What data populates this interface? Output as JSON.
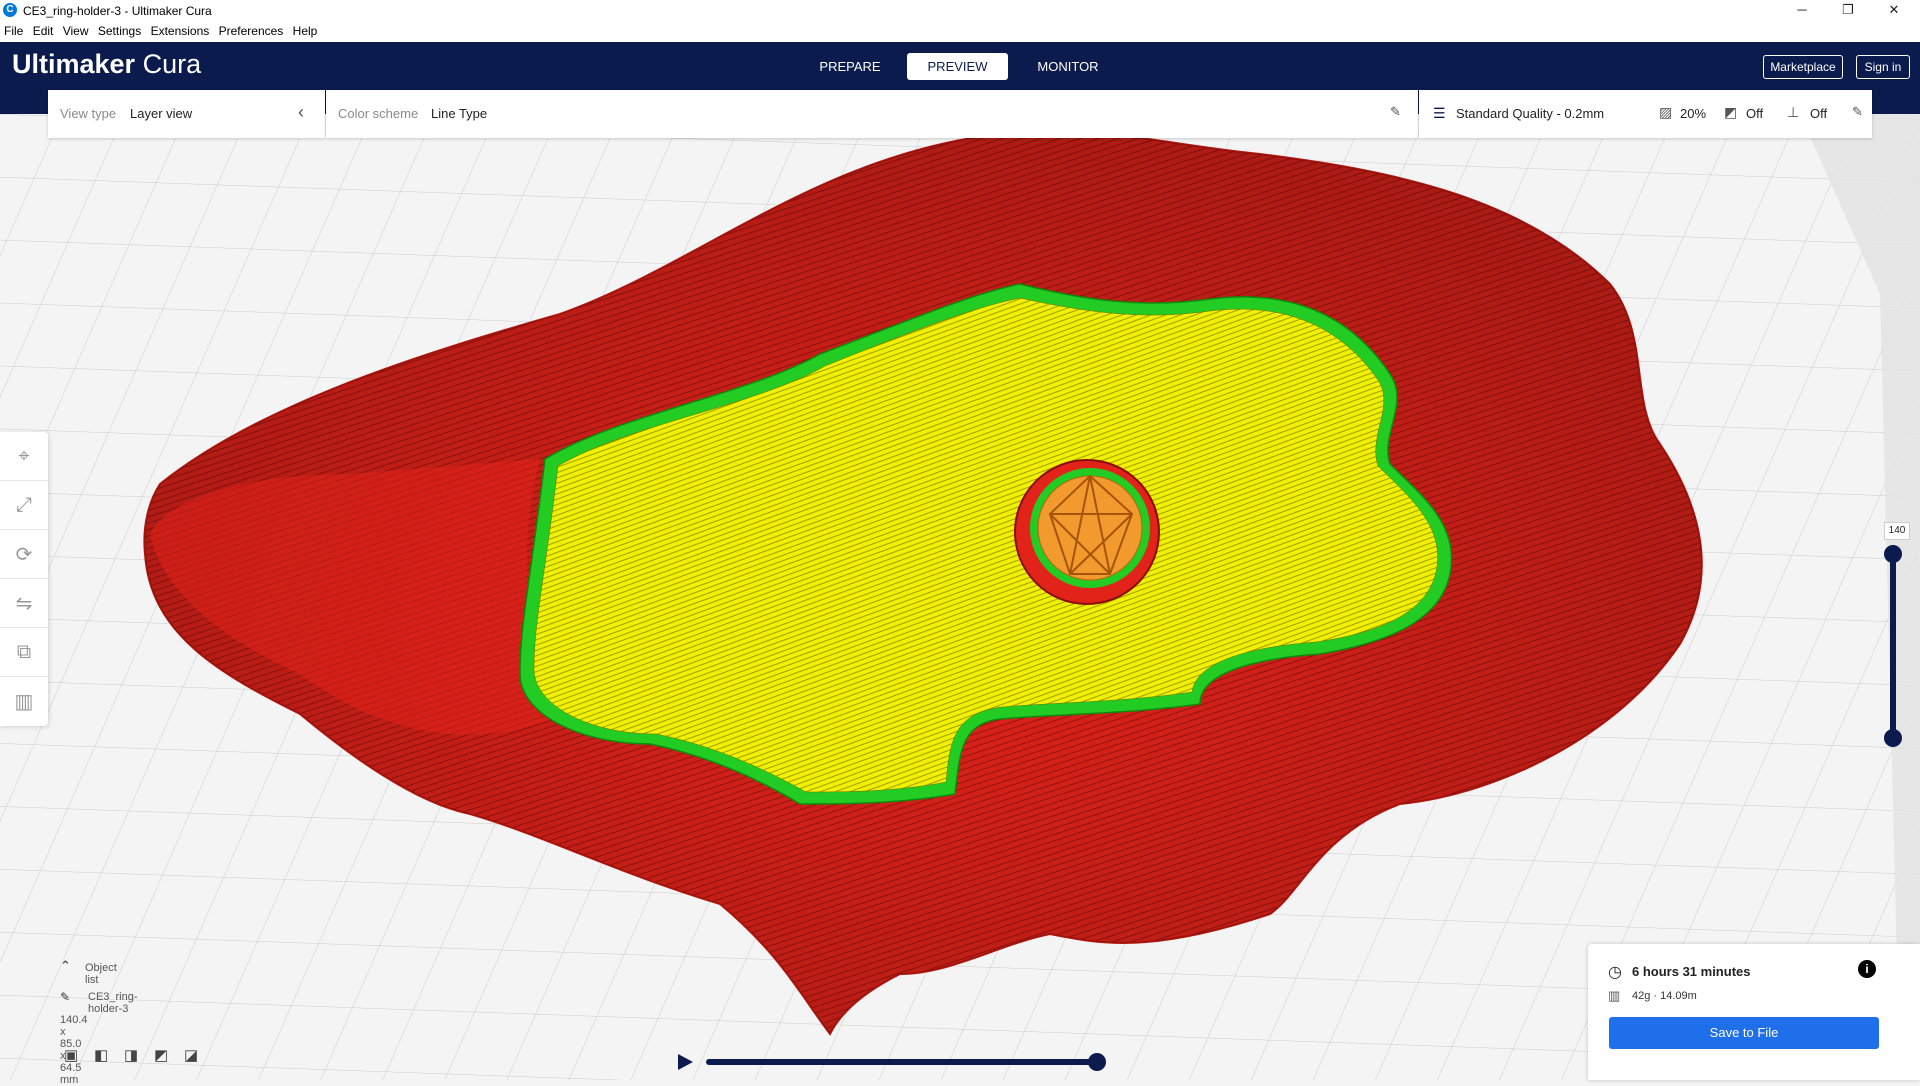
{
  "window": {
    "title": "CE3_ring-holder-3 - Ultimaker Cura",
    "app_icon": "C",
    "minimize": "─",
    "restore": "❐",
    "close": "✕"
  },
  "menu": [
    "File",
    "Edit",
    "View",
    "Settings",
    "Extensions",
    "Preferences",
    "Help"
  ],
  "header": {
    "logo_bold": "Ultimaker",
    "logo_light": " Cura",
    "tabs": [
      "PREPARE",
      "PREVIEW",
      "MONITOR"
    ],
    "active_tab": "PREVIEW",
    "marketplace": "Marketplace",
    "sign_in": "Sign in"
  },
  "view_panel": {
    "label": "View type",
    "value": "Layer view"
  },
  "color_panel": {
    "label": "Color scheme",
    "value": "Line Type"
  },
  "print_setup": {
    "quality": "Standard Quality - 0.2mm",
    "infill": "20%",
    "support": "Off",
    "adhesion": "Off"
  },
  "layer_slider": {
    "current_layer": "140",
    "position": 1.0
  },
  "simulation": {
    "progress": 1.0
  },
  "object_list": {
    "header": "Object list",
    "name": "CE3_ring-holder-3",
    "dimensions": "140.4 x 85.0 x 64.5 mm"
  },
  "print_info": {
    "time": "6 hours 31 minutes",
    "material": "42g · 14.09m",
    "save_button": "Save to File"
  },
  "colors": {
    "header_bg": "#0b1b4d",
    "wall_outer": "#e2231a",
    "wall_inner": "#22cc22",
    "top_bottom": "#f0f000",
    "infill": "#f39a2e",
    "accent": "#1f6feb"
  }
}
